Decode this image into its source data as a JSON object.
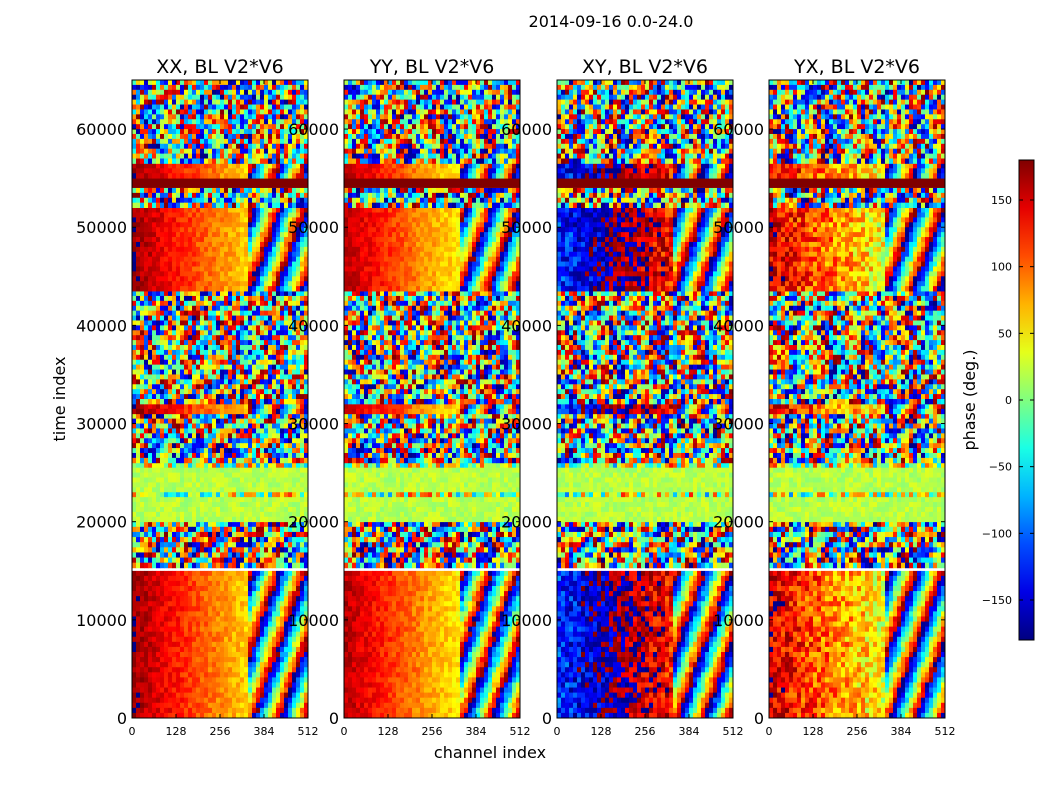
{
  "figure": {
    "title": "2014-09-16 0.0-24.0"
  },
  "chart_data": {
    "type": "heatmap",
    "ylabel": "time index",
    "xlabel": "channel index",
    "x_ticks": [
      "0",
      "128",
      "256",
      "384",
      "512"
    ],
    "y_ticks": [
      "0",
      "10000",
      "20000",
      "30000",
      "40000",
      "50000",
      "60000"
    ],
    "xlim": [
      0,
      512
    ],
    "ylim": [
      0,
      65000
    ],
    "panels": [
      {
        "title": "XX, BL V2*V6",
        "pol": "XX"
      },
      {
        "title": "YY, BL V2*V6",
        "pol": "YY"
      },
      {
        "title": "XY, BL V2*V6",
        "pol": "XY"
      },
      {
        "title": "YX, BL V2*V6",
        "pol": "YX"
      }
    ],
    "colorbar": {
      "label": "phase (deg.)",
      "ticks": [
        "150",
        "100",
        "50",
        "0",
        "−50",
        "−100",
        "−150"
      ],
      "tick_values": [
        150,
        100,
        50,
        0,
        -50,
        -100,
        -150
      ],
      "range": [
        -180,
        180
      ],
      "colormap": "jet"
    },
    "bands": [
      {
        "from": 0,
        "to": 15000,
        "kind": "smooth"
      },
      {
        "from": 15000,
        "to": 15300,
        "kind": "gap"
      },
      {
        "from": 15300,
        "to": 20000,
        "kind": "noisy"
      },
      {
        "from": 20000,
        "to": 26000,
        "kind": "flat"
      },
      {
        "from": 26000,
        "to": 31000,
        "kind": "noisy"
      },
      {
        "from": 31000,
        "to": 32000,
        "kind": "smooth"
      },
      {
        "from": 32000,
        "to": 43500,
        "kind": "noisy"
      },
      {
        "from": 43500,
        "to": 52000,
        "kind": "smooth"
      },
      {
        "from": 52000,
        "to": 54000,
        "kind": "noisy"
      },
      {
        "from": 54000,
        "to": 55000,
        "kind": "flagged"
      },
      {
        "from": 55000,
        "to": 56500,
        "kind": "smooth"
      },
      {
        "from": 56500,
        "to": 65000,
        "kind": "noisy"
      }
    ]
  }
}
